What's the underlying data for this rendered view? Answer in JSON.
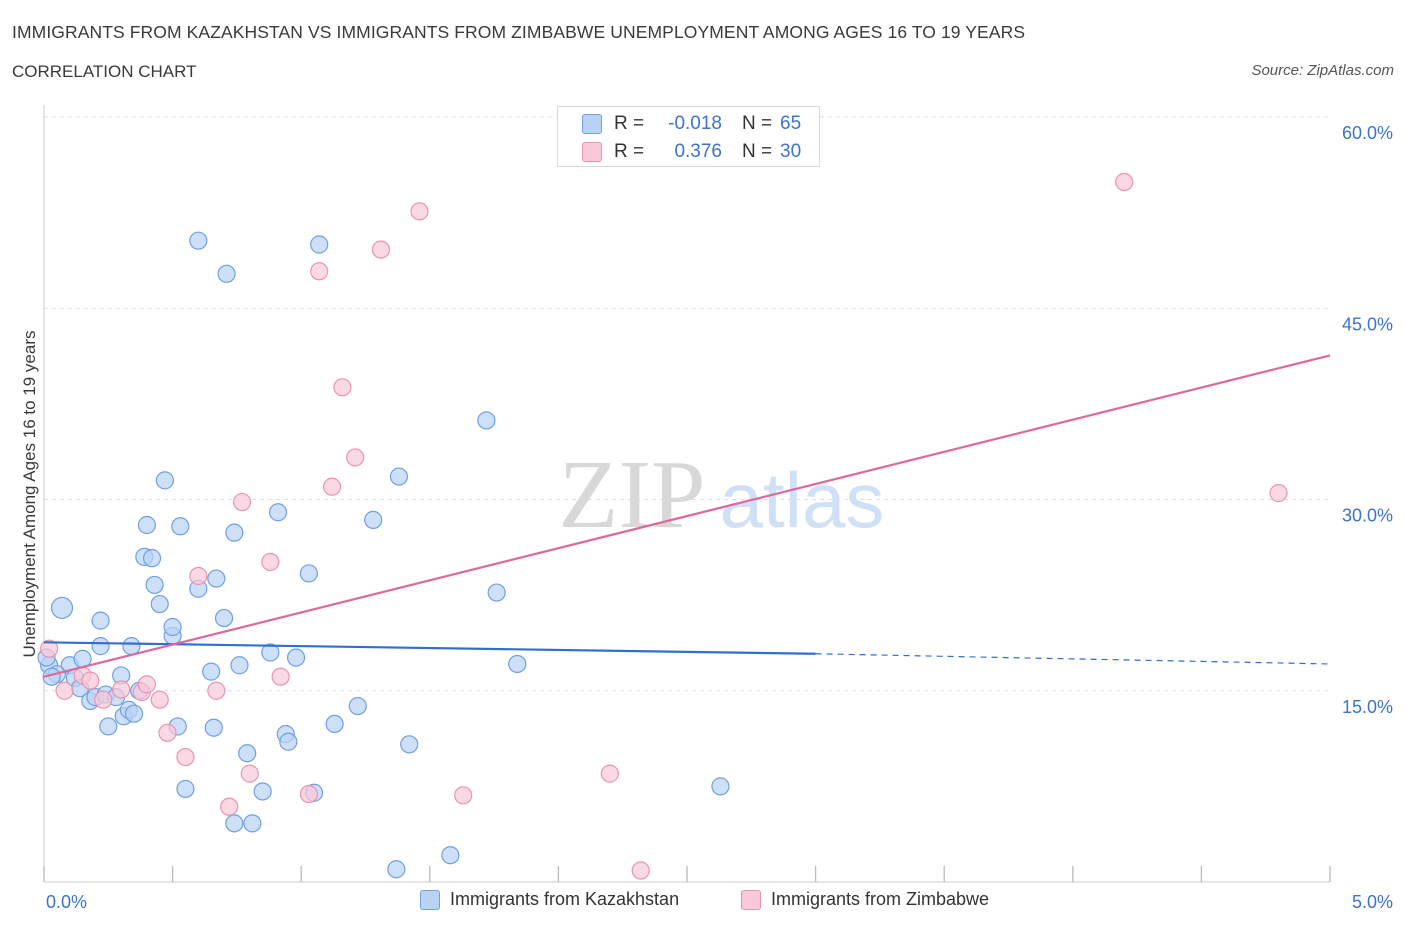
{
  "header": {
    "title": "IMMIGRANTS FROM KAZAKHSTAN VS IMMIGRANTS FROM ZIMBABWE UNEMPLOYMENT AMONG AGES 16 TO 19 YEARS",
    "subtitle": "CORRELATION CHART",
    "source": "Source: ZipAtlas.com"
  },
  "colors": {
    "blue_fill": "#b9d3f5",
    "blue_stroke": "#6fa0e0",
    "blue_line": "#2f6fcf",
    "pink_fill": "#f9c9d8",
    "pink_stroke": "#ea93b1",
    "pink_line": "#e0679a",
    "tick_label": "#3d73c9",
    "grid": "#dddddd"
  },
  "legend": {
    "series": [
      {
        "r_label": "R =",
        "r_value": "-0.018",
        "n_label": "N =",
        "n_value": "65"
      },
      {
        "r_label": "R =",
        "r_value": "0.376",
        "n_label": "N =",
        "n_value": "30"
      }
    ]
  },
  "bottom_legend": [
    "Immigrants from Kazakhstan",
    "Immigrants from Zimbabwe"
  ],
  "chart_data": {
    "type": "scatter",
    "title": "IMMIGRANTS FROM KAZAKHSTAN VS IMMIGRANTS FROM ZIMBABWE UNEMPLOYMENT AMONG AGES 16 TO 19 YEARS",
    "xlabel": "",
    "ylabel": "Unemployment Among Ages 16 to 19 years",
    "xlim": [
      0,
      5
    ],
    "ylim": [
      0,
      60
    ],
    "x_tick_labels": [
      {
        "value": 0,
        "label": "0.0%"
      },
      {
        "value": 5,
        "label": "5.0%"
      }
    ],
    "y_tick_labels": [
      {
        "value": 15,
        "label": "15.0%"
      },
      {
        "value": 30,
        "label": "30.0%"
      },
      {
        "value": 45,
        "label": "45.0%"
      },
      {
        "value": 60,
        "label": "60.0%"
      }
    ],
    "grid": true,
    "legend_position": "top-center",
    "watermark": "ZIPatlas",
    "series": [
      {
        "name": "Immigrants from Kazakhstan",
        "color": "#6fa0e0",
        "r": -0.018,
        "n": 65,
        "trend": {
          "x0": 0.0,
          "y0": 18.8,
          "x1": 3.0,
          "y1": 17.9,
          "dashed_to_x": 5.0,
          "dashed_to_y": 17.1
        },
        "points": [
          [
            0.07,
            21.5
          ],
          [
            0.02,
            17.0
          ],
          [
            0.1,
            17.0
          ],
          [
            0.05,
            16.3
          ],
          [
            0.12,
            16.0
          ],
          [
            0.14,
            15.2
          ],
          [
            0.15,
            17.5
          ],
          [
            0.18,
            14.2
          ],
          [
            0.2,
            14.5
          ],
          [
            0.22,
            20.5
          ],
          [
            0.24,
            14.7
          ],
          [
            0.25,
            12.2
          ],
          [
            0.28,
            14.5
          ],
          [
            0.3,
            16.2
          ],
          [
            0.31,
            13.0
          ],
          [
            0.33,
            13.5
          ],
          [
            0.34,
            18.5
          ],
          [
            0.35,
            13.2
          ],
          [
            0.37,
            15.0
          ],
          [
            0.39,
            25.5
          ],
          [
            0.4,
            28.0
          ],
          [
            0.42,
            25.4
          ],
          [
            0.43,
            23.3
          ],
          [
            0.45,
            21.8
          ],
          [
            0.47,
            31.5
          ],
          [
            0.5,
            19.3
          ],
          [
            0.5,
            20.0
          ],
          [
            0.52,
            12.2
          ],
          [
            0.53,
            27.9
          ],
          [
            0.55,
            7.3
          ],
          [
            0.6,
            23.0
          ],
          [
            0.6,
            50.3
          ],
          [
            0.65,
            16.5
          ],
          [
            0.66,
            12.1
          ],
          [
            0.67,
            23.8
          ],
          [
            0.7,
            20.7
          ],
          [
            0.71,
            47.7
          ],
          [
            0.74,
            4.6
          ],
          [
            0.74,
            27.4
          ],
          [
            0.76,
            17.0
          ],
          [
            0.79,
            10.1
          ],
          [
            0.81,
            4.6
          ],
          [
            0.85,
            7.1
          ],
          [
            0.88,
            18.0
          ],
          [
            0.91,
            29.0
          ],
          [
            0.94,
            11.6
          ],
          [
            0.95,
            11.0
          ],
          [
            0.98,
            17.6
          ],
          [
            1.03,
            24.2
          ],
          [
            1.05,
            7.0
          ],
          [
            1.07,
            50.0
          ],
          [
            1.13,
            12.4
          ],
          [
            1.22,
            13.8
          ],
          [
            1.28,
            28.4
          ],
          [
            1.37,
            1.0
          ],
          [
            1.38,
            31.8
          ],
          [
            1.42,
            10.8
          ],
          [
            1.58,
            2.1
          ],
          [
            1.72,
            36.2
          ],
          [
            1.76,
            22.7
          ],
          [
            1.84,
            17.1
          ],
          [
            2.63,
            7.5
          ],
          [
            0.01,
            17.6
          ],
          [
            0.03,
            16.1
          ],
          [
            0.22,
            18.5
          ]
        ]
      },
      {
        "name": "Immigrants from Zimbabwe",
        "color": "#ea93b1",
        "r": 0.376,
        "n": 30,
        "trend": {
          "x0": 0.0,
          "y0": 16.1,
          "x1": 5.0,
          "y1": 41.3
        },
        "points": [
          [
            0.02,
            18.3
          ],
          [
            0.08,
            15.0
          ],
          [
            0.15,
            16.2
          ],
          [
            0.18,
            15.8
          ],
          [
            0.23,
            14.3
          ],
          [
            0.3,
            15.1
          ],
          [
            0.38,
            14.9
          ],
          [
            0.4,
            15.5
          ],
          [
            0.45,
            14.3
          ],
          [
            0.48,
            11.7
          ],
          [
            0.55,
            9.8
          ],
          [
            0.6,
            24.0
          ],
          [
            0.67,
            15.0
          ],
          [
            0.72,
            5.9
          ],
          [
            0.77,
            29.8
          ],
          [
            0.8,
            8.5
          ],
          [
            0.88,
            25.1
          ],
          [
            0.92,
            16.1
          ],
          [
            1.03,
            6.9
          ],
          [
            1.07,
            47.9
          ],
          [
            1.12,
            31.0
          ],
          [
            1.16,
            38.8
          ],
          [
            1.21,
            33.3
          ],
          [
            1.31,
            49.6
          ],
          [
            1.46,
            52.6
          ],
          [
            1.63,
            6.8
          ],
          [
            2.2,
            8.5
          ],
          [
            2.32,
            0.9
          ],
          [
            4.2,
            54.9
          ],
          [
            4.8,
            30.5
          ]
        ]
      }
    ]
  }
}
